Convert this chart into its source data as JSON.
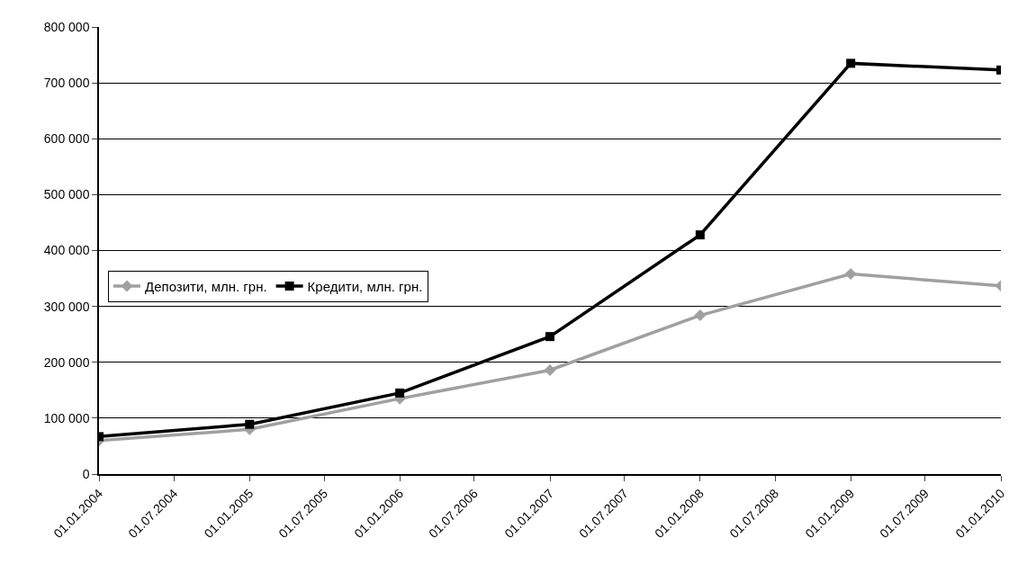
{
  "chart_data": {
    "type": "line",
    "x": [
      "2004-01-01",
      "2005-01-01",
      "2006-01-01",
      "2007-01-01",
      "2008-01-01",
      "2009-01-01",
      "2010-01-01"
    ],
    "series": [
      {
        "name": "Депозити, млн. грн.",
        "color": "#a0a0a0",
        "marker": "diamond",
        "values": [
          60000,
          80000,
          135000,
          186000,
          284000,
          358000,
          337000
        ]
      },
      {
        "name": "Кредити, млн. грн.",
        "color": "#000000",
        "marker": "square",
        "values": [
          67000,
          89000,
          145000,
          246000,
          428000,
          735000,
          723000
        ]
      }
    ],
    "xlim": [
      "2004-01-01",
      "2010-01-01"
    ],
    "xticks": [
      {
        "value": "2004-01-01",
        "label": "01.01.2004"
      },
      {
        "value": "2004-07-01",
        "label": "01.07.2004"
      },
      {
        "value": "2005-01-01",
        "label": "01.01.2005"
      },
      {
        "value": "2005-07-01",
        "label": "01.07.2005"
      },
      {
        "value": "2006-01-01",
        "label": "01.01.2006"
      },
      {
        "value": "2006-07-01",
        "label": "01.07.2006"
      },
      {
        "value": "2007-01-01",
        "label": "01.01.2007"
      },
      {
        "value": "2007-07-01",
        "label": "01.07.2007"
      },
      {
        "value": "2008-01-01",
        "label": "01.01.2008"
      },
      {
        "value": "2008-07-01",
        "label": "01.07.2008"
      },
      {
        "value": "2009-01-01",
        "label": "01.01.2009"
      },
      {
        "value": "2009-07-01",
        "label": "01.07.2009"
      },
      {
        "value": "2010-01-01",
        "label": "01.01.2010"
      }
    ],
    "ylim": [
      0,
      800000
    ],
    "yticks": [
      {
        "value": 0,
        "label": "0"
      },
      {
        "value": 100000,
        "label": "100 000"
      },
      {
        "value": 200000,
        "label": "200 000"
      },
      {
        "value": 300000,
        "label": "300 000"
      },
      {
        "value": 400000,
        "label": "400 000"
      },
      {
        "value": 500000,
        "label": "500 000"
      },
      {
        "value": 600000,
        "label": "600 000"
      },
      {
        "value": 700000,
        "label": "700 000"
      },
      {
        "value": 800000,
        "label": "800 000"
      }
    ],
    "grid": "y",
    "legend": "left",
    "line_style": "solid"
  }
}
